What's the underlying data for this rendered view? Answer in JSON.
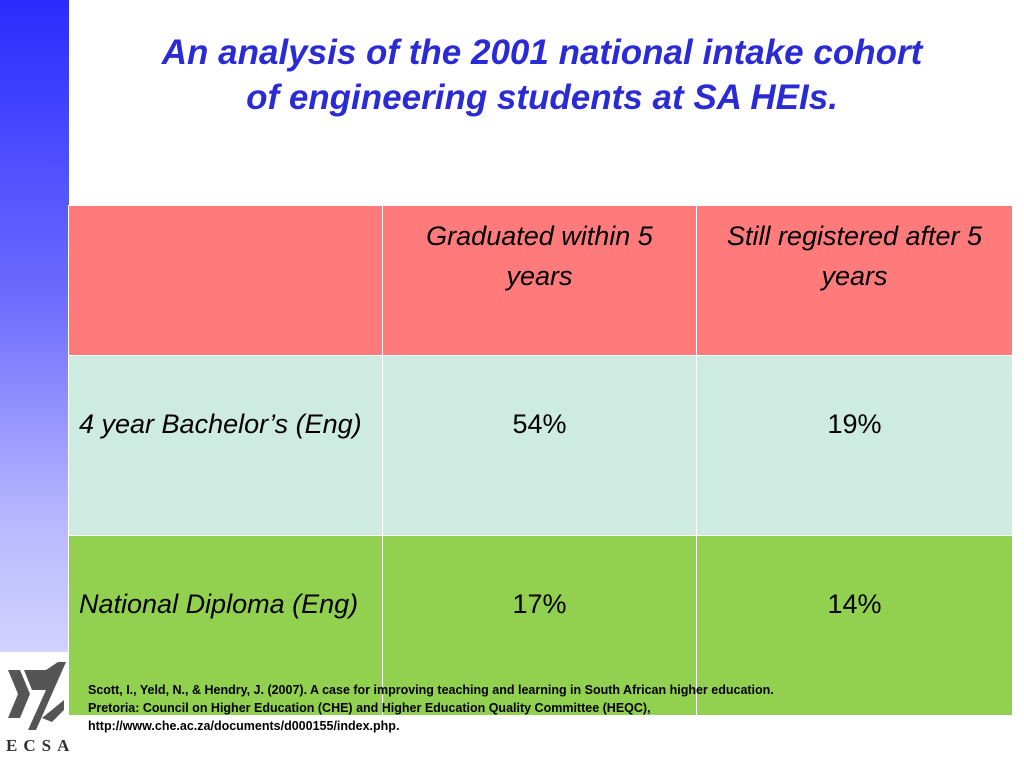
{
  "title": {
    "line1": "An analysis of the 2001 national intake cohort",
    "line2": "of engineering students at SA HEIs."
  },
  "table": {
    "header": [
      "",
      "Graduated within 5 years",
      "Still registered after 5 years"
    ],
    "rows": [
      {
        "label": "4 year Bachelor’s (Eng)",
        "graduated": "54%",
        "still_registered": "19%"
      },
      {
        "label": "National Diploma (Eng)",
        "graduated": "17%",
        "still_registered": "14%"
      }
    ]
  },
  "citation": {
    "line1": "Scott, I., Yeld, N., & Hendry, J. (2007). A case for improving teaching and learning in South African higher education.",
    "line2": "Pretoria: Council on Higher Education (CHE) and Higher Education Quality Committee (HEQC),",
    "line3": "http://www.che.ac.za/documents/d000155/index.php."
  },
  "logo": {
    "text": "ECSA"
  },
  "colors": {
    "title": "#2b2bd6",
    "header_row": "#ff7a7a",
    "bachelor_row": "#cdebe0",
    "diploma_row": "#92d050"
  }
}
